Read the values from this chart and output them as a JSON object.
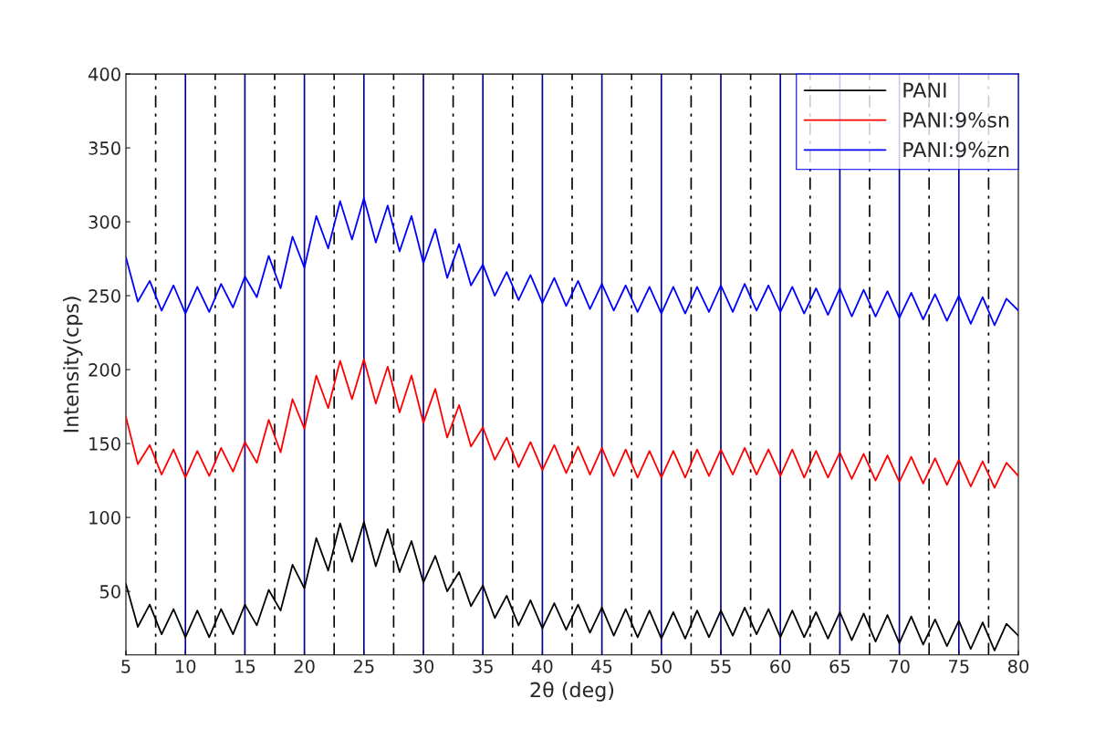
{
  "chart_data": {
    "type": "line",
    "xlabel": "2θ (deg)",
    "ylabel": "Intensity(cps)",
    "x": [
      5,
      6,
      7,
      8,
      9,
      10,
      11,
      12,
      13,
      14,
      15,
      16,
      17,
      18,
      19,
      20,
      21,
      22,
      23,
      24,
      25,
      26,
      27,
      28,
      29,
      30,
      31,
      32,
      33,
      34,
      35,
      36,
      37,
      38,
      39,
      40,
      41,
      42,
      43,
      44,
      45,
      46,
      47,
      48,
      49,
      50,
      51,
      52,
      53,
      54,
      55,
      56,
      57,
      58,
      59,
      60,
      61,
      62,
      63,
      64,
      65,
      66,
      67,
      68,
      69,
      70,
      71,
      72,
      73,
      74,
      75,
      76,
      77,
      78,
      79,
      80
    ],
    "series": [
      {
        "name": "PANI",
        "color": "#000000",
        "values": [
          55,
          26,
          41,
          21,
          38,
          19,
          37,
          19,
          38,
          21,
          41,
          27,
          51,
          37,
          68,
          52,
          86,
          64,
          96,
          70,
          97,
          67,
          92,
          63,
          84,
          56,
          74,
          50,
          63,
          40,
          54,
          32,
          47,
          27,
          44,
          25,
          42,
          24,
          41,
          22,
          39,
          20,
          38,
          19,
          37,
          18,
          36,
          18,
          37,
          19,
          37,
          20,
          39,
          21,
          38,
          19,
          37,
          19,
          36,
          18,
          36,
          17,
          35,
          16,
          34,
          15,
          33,
          14,
          31,
          13,
          30,
          11,
          29,
          10,
          28,
          20
        ]
      },
      {
        "name": "PANI:9%sn",
        "color": "#ff0000",
        "values": [
          168,
          136,
          149,
          129,
          146,
          127,
          145,
          128,
          147,
          131,
          151,
          137,
          166,
          144,
          180,
          160,
          196,
          174,
          206,
          180,
          207,
          177,
          202,
          171,
          196,
          164,
          187,
          154,
          176,
          148,
          161,
          139,
          154,
          134,
          151,
          132,
          149,
          130,
          148,
          129,
          147,
          128,
          146,
          127,
          145,
          127,
          145,
          127,
          146,
          128,
          146,
          129,
          147,
          129,
          146,
          128,
          146,
          127,
          145,
          127,
          144,
          126,
          143,
          125,
          142,
          124,
          141,
          123,
          140,
          122,
          139,
          121,
          138,
          120,
          137,
          128
        ]
      },
      {
        "name": "PANI:9%zn",
        "color": "#0000ff",
        "values": [
          276,
          246,
          260,
          240,
          257,
          238,
          256,
          239,
          258,
          242,
          263,
          249,
          277,
          255,
          290,
          269,
          304,
          282,
          314,
          288,
          316,
          286,
          311,
          280,
          304,
          272,
          295,
          262,
          285,
          257,
          271,
          250,
          266,
          247,
          264,
          245,
          262,
          243,
          260,
          241,
          258,
          240,
          257,
          239,
          256,
          238,
          256,
          238,
          256,
          239,
          257,
          239,
          258,
          240,
          257,
          239,
          256,
          238,
          255,
          237,
          255,
          236,
          254,
          236,
          253,
          235,
          252,
          234,
          251,
          233,
          250,
          231,
          249,
          230,
          248,
          240
        ]
      }
    ],
    "xlim": [
      5,
      80
    ],
    "xticks": [
      5,
      10,
      15,
      20,
      25,
      30,
      35,
      40,
      45,
      50,
      55,
      60,
      65,
      70,
      75,
      80
    ],
    "ylim": [
      7,
      400
    ],
    "yticks": [
      50,
      100,
      150,
      200,
      250,
      300,
      350,
      400
    ],
    "ref_lines": [
      {
        "axis": "x",
        "value": 10,
        "color": "#00008b",
        "line_style": "solid"
      },
      {
        "axis": "x",
        "value": 15,
        "color": "#00008b",
        "line_style": "solid"
      },
      {
        "axis": "x",
        "value": 20,
        "color": "#00008b",
        "line_style": "solid"
      },
      {
        "axis": "x",
        "value": 25,
        "color": "#00008b",
        "line_style": "solid"
      },
      {
        "axis": "x",
        "value": 30,
        "color": "#00008b",
        "line_style": "solid"
      },
      {
        "axis": "x",
        "value": 35,
        "color": "#00008b",
        "line_style": "solid"
      },
      {
        "axis": "x",
        "value": 40,
        "color": "#00008b",
        "line_style": "solid"
      },
      {
        "axis": "x",
        "value": 45,
        "color": "#00008b",
        "line_style": "solid"
      },
      {
        "axis": "x",
        "value": 50,
        "color": "#00008b",
        "line_style": "solid"
      },
      {
        "axis": "x",
        "value": 55,
        "color": "#00008b",
        "line_style": "solid"
      },
      {
        "axis": "x",
        "value": 60,
        "color": "#00008b",
        "line_style": "solid"
      },
      {
        "axis": "x",
        "value": 65,
        "color": "#00008b",
        "line_style": "solid"
      },
      {
        "axis": "x",
        "value": 70,
        "color": "#00008b",
        "line_style": "solid"
      },
      {
        "axis": "x",
        "value": 75,
        "color": "#00008b",
        "line_style": "solid"
      },
      {
        "axis": "x",
        "value": 7.5,
        "color": "#000000",
        "line_style": "dashed"
      },
      {
        "axis": "x",
        "value": 12.5,
        "color": "#000000",
        "line_style": "dashed"
      },
      {
        "axis": "x",
        "value": 17.5,
        "color": "#000000",
        "line_style": "dashed"
      },
      {
        "axis": "x",
        "value": 22.5,
        "color": "#000000",
        "line_style": "dashed"
      },
      {
        "axis": "x",
        "value": 27.5,
        "color": "#000000",
        "line_style": "dashed"
      },
      {
        "axis": "x",
        "value": 32.5,
        "color": "#000000",
        "line_style": "dashed"
      },
      {
        "axis": "x",
        "value": 37.5,
        "color": "#000000",
        "line_style": "dashed"
      },
      {
        "axis": "x",
        "value": 42.5,
        "color": "#000000",
        "line_style": "dashed"
      },
      {
        "axis": "x",
        "value": 47.5,
        "color": "#000000",
        "line_style": "dashed"
      },
      {
        "axis": "x",
        "value": 52.5,
        "color": "#000000",
        "line_style": "dashed"
      },
      {
        "axis": "x",
        "value": 57.5,
        "color": "#000000",
        "line_style": "dashed"
      },
      {
        "axis": "x",
        "value": 62.5,
        "color": "#000000",
        "line_style": "dashed"
      },
      {
        "axis": "x",
        "value": 67.5,
        "color": "#000000",
        "line_style": "dashed"
      },
      {
        "axis": "x",
        "value": 72.5,
        "color": "#000000",
        "line_style": "dashed"
      },
      {
        "axis": "x",
        "value": 77.5,
        "color": "#000000",
        "line_style": "dashed"
      }
    ],
    "legend": "top right",
    "line_style": "solid",
    "marker": "none",
    "grid": false
  }
}
